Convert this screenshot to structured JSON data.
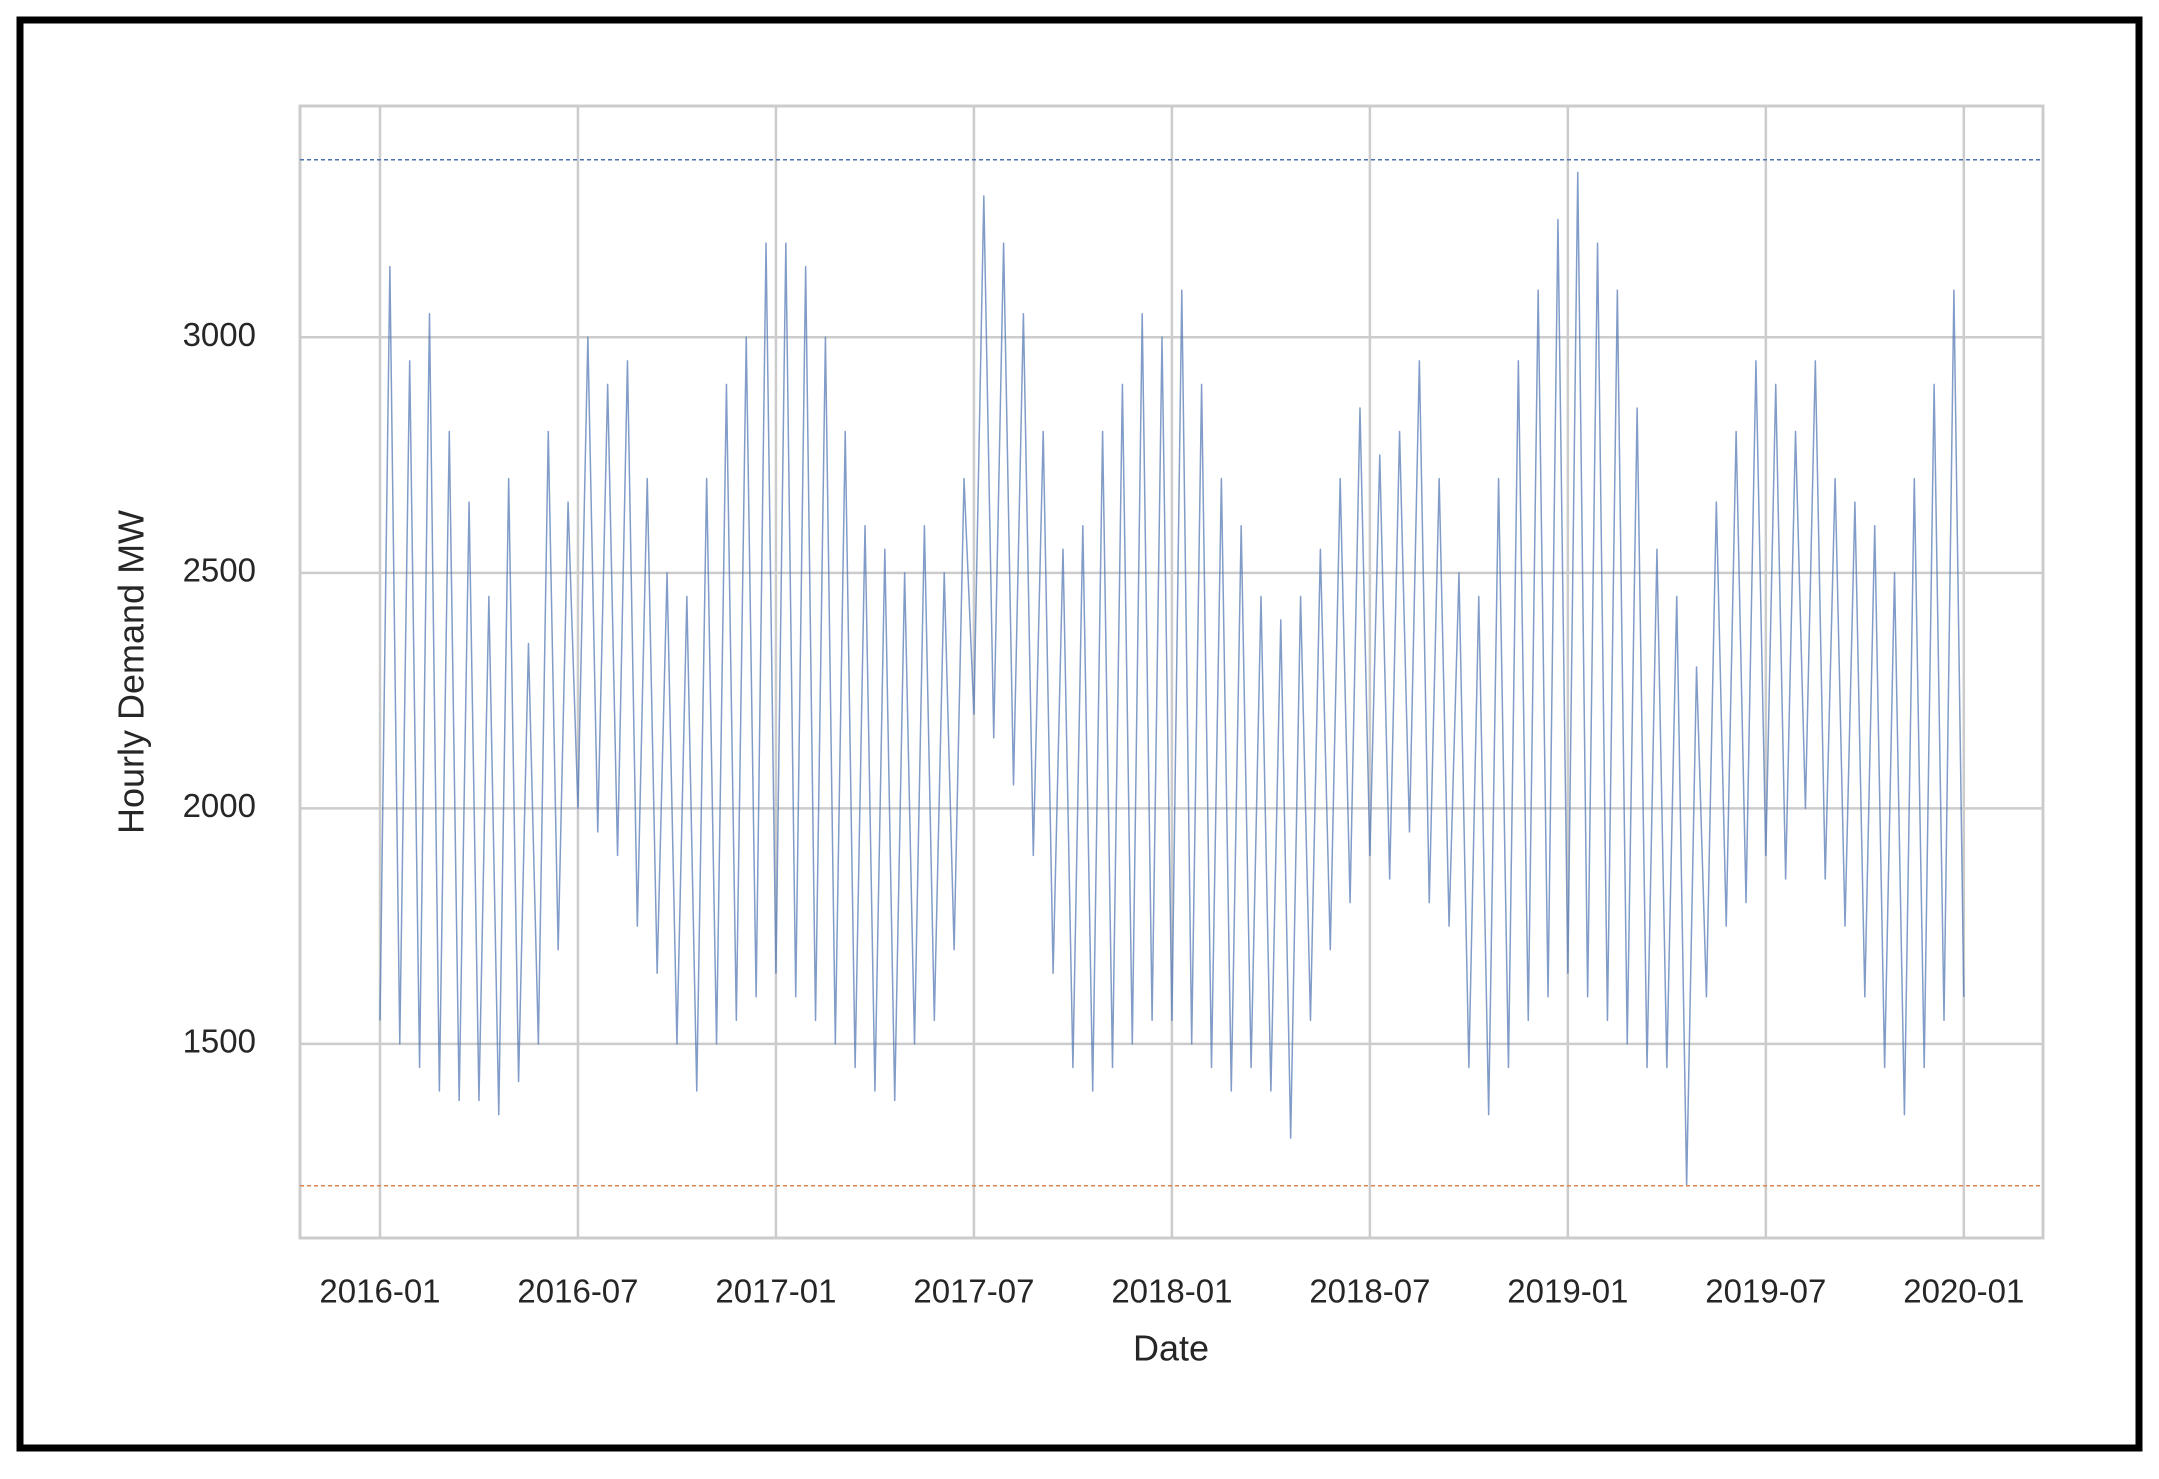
{
  "chart_data": {
    "type": "line",
    "xlabel": "Date",
    "ylabel": "Hourly Demand MW",
    "xlim": [
      2015.798,
      2020.2
    ],
    "ylim": [
      1088,
      3491
    ],
    "xticks": [
      {
        "value": 2016,
        "label": "2016-01"
      },
      {
        "value": 2016.5,
        "label": "2016-07"
      },
      {
        "value": 2017,
        "label": "2017-01"
      },
      {
        "value": 2017.5,
        "label": "2017-07"
      },
      {
        "value": 2018,
        "label": "2018-01"
      },
      {
        "value": 2018.5,
        "label": "2018-07"
      },
      {
        "value": 2019,
        "label": "2019-01"
      },
      {
        "value": 2019.5,
        "label": "2019-07"
      },
      {
        "value": 2020,
        "label": "2020-01"
      }
    ],
    "yticks": [
      1500,
      2000,
      2500,
      3000
    ],
    "grid": true,
    "hlines": [
      {
        "value": 3377,
        "color": "#4c72b0"
      },
      {
        "value": 1199,
        "color": "#dd8452"
      }
    ],
    "x": [
      2016,
      2016.025,
      2016.05,
      2016.075,
      2016.1,
      2016.125,
      2016.15,
      2016.175,
      2016.2,
      2016.225,
      2016.25,
      2016.275,
      2016.3,
      2016.325,
      2016.35,
      2016.375,
      2016.4,
      2016.425,
      2016.45,
      2016.475,
      2016.5,
      2016.525,
      2016.55,
      2016.575,
      2016.6,
      2016.625,
      2016.65,
      2016.675,
      2016.7,
      2016.725,
      2016.75,
      2016.775,
      2016.8,
      2016.825,
      2016.85,
      2016.875,
      2016.9,
      2016.925,
      2016.95,
      2016.975,
      2017,
      2017.025,
      2017.05,
      2017.075,
      2017.1,
      2017.125,
      2017.15,
      2017.175,
      2017.2,
      2017.225,
      2017.25,
      2017.275,
      2017.3,
      2017.325,
      2017.35,
      2017.375,
      2017.4,
      2017.425,
      2017.45,
      2017.475,
      2017.5,
      2017.525,
      2017.55,
      2017.575,
      2017.6,
      2017.625,
      2017.65,
      2017.675,
      2017.7,
      2017.725,
      2017.75,
      2017.775,
      2017.8,
      2017.825,
      2017.85,
      2017.875,
      2017.9,
      2017.925,
      2017.95,
      2017.975,
      2018,
      2018.025,
      2018.05,
      2018.075,
      2018.1,
      2018.125,
      2018.15,
      2018.175,
      2018.2,
      2018.225,
      2018.25,
      2018.275,
      2018.3,
      2018.325,
      2018.35,
      2018.375,
      2018.4,
      2018.425,
      2018.45,
      2018.475,
      2018.5,
      2018.525,
      2018.55,
      2018.575,
      2018.6,
      2018.625,
      2018.65,
      2018.675,
      2018.7,
      2018.725,
      2018.75,
      2018.775,
      2018.8,
      2018.825,
      2018.85,
      2018.875,
      2018.9,
      2018.925,
      2018.95,
      2018.975,
      2019,
      2019.025,
      2019.05,
      2019.075,
      2019.1,
      2019.125,
      2019.15,
      2019.175,
      2019.2,
      2019.225,
      2019.25,
      2019.275,
      2019.3,
      2019.325,
      2019.35,
      2019.375,
      2019.4,
      2019.425,
      2019.45,
      2019.475,
      2019.5,
      2019.525,
      2019.55,
      2019.575,
      2019.6,
      2019.625,
      2019.65,
      2019.675,
      2019.7,
      2019.725,
      2019.75,
      2019.775,
      2019.8,
      2019.825,
      2019.85,
      2019.875,
      2019.9,
      2019.925,
      2019.95,
      2019.975,
      2020
    ],
    "series": [
      {
        "color": "#4c72b0",
        "values": [
          1550,
          3150,
          1500,
          2950,
          1450,
          3050,
          1400,
          2800,
          1380,
          2650,
          1380,
          2450,
          1350,
          2700,
          1420,
          2350,
          1500,
          2800,
          1700,
          2650,
          2000,
          3000,
          1950,
          2900,
          1900,
          2950,
          1750,
          2700,
          1650,
          2500,
          1500,
          2450,
          1400,
          2700,
          1500,
          2900,
          1550,
          3000,
          1600,
          3200,
          1650,
          3200,
          1600,
          3150,
          1550,
          3000,
          1500,
          2800,
          1450,
          2600,
          1400,
          2550,
          1380,
          2500,
          1500,
          2600,
          1550,
          2500,
          1700,
          2700,
          2200,
          3300,
          2150,
          3200,
          2050,
          3050,
          1900,
          2800,
          1650,
          2550,
          1450,
          2600,
          1400,
          2800,
          1450,
          2900,
          1500,
          3050,
          1550,
          3000,
          1550,
          3100,
          1500,
          2900,
          1450,
          2700,
          1400,
          2600,
          1450,
          2450,
          1400,
          2400,
          1300,
          2450,
          1550,
          2550,
          1700,
          2700,
          1800,
          2850,
          1900,
          2750,
          1850,
          2800,
          1950,
          2950,
          1800,
          2700,
          1750,
          2500,
          1450,
          2450,
          1350,
          2700,
          1450,
          2950,
          1550,
          3100,
          1600,
          3250,
          1650,
          3350,
          1600,
          3200,
          1550,
          3100,
          1500,
          2850,
          1450,
          2550,
          1450,
          2450,
          1200,
          2300,
          1600,
          2650,
          1750,
          2800,
          1800,
          2950,
          1900,
          2900,
          1850,
          2800,
          2000,
          2950,
          1850,
          2700,
          1750,
          2650,
          1600,
          2600,
          1450,
          2500,
          1350,
          2700,
          1450,
          2900,
          1550,
          3100,
          1600
        ]
      }
    ]
  }
}
